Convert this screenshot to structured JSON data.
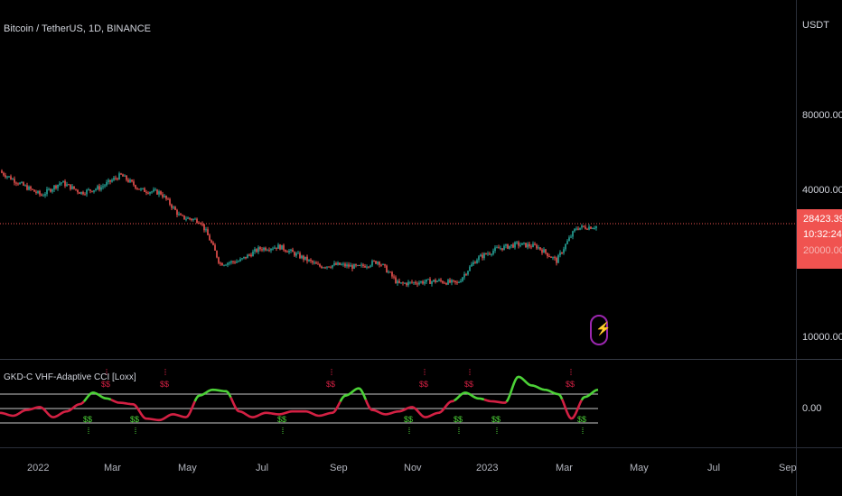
{
  "header": {
    "symbol": "Bitcoin / TetherUS, 1D, BINANCE",
    "currency": "USDT"
  },
  "price_axis": {
    "labels": [
      "80000.00",
      "40000.00",
      "10000.00"
    ]
  },
  "last_price": {
    "value": "28423.39",
    "countdown": "10:32:24",
    "hidden_label": "20000.00"
  },
  "indicator": {
    "title": "GKD-C VHF-Adaptive CCI [Loxx]",
    "axis_label": "0.00",
    "signal_label": "$$"
  },
  "time_axis": {
    "labels": [
      "2022",
      "Mar",
      "May",
      "Jul",
      "Sep",
      "Nov",
      "2023",
      "Mar",
      "May",
      "Jul",
      "Sep"
    ]
  },
  "colors": {
    "up_candle": "#26a69a",
    "down_candle": "#ef5350",
    "price_line": "#f05350",
    "osc_bull": "#4cd137",
    "osc_bear": "#d32043",
    "level_lines": "#a0a0a0",
    "background": "#000000"
  },
  "chart_data": [
    {
      "type": "candlestick",
      "title": "Bitcoin / TetherUS, 1D, BINANCE",
      "scale": "log",
      "y_ticks": [
        80000,
        40000,
        10000
      ],
      "last_price": 28423.39,
      "x": [
        "2022-01",
        "2022-01",
        "2022-02",
        "2022-02",
        "2022-03",
        "2022-03",
        "2022-04",
        "2022-04",
        "2022-05",
        "2022-05",
        "2022-06",
        "2022-06",
        "2022-07",
        "2022-07",
        "2022-08",
        "2022-08",
        "2022-09",
        "2022-09",
        "2022-10",
        "2022-10",
        "2022-11",
        "2022-11",
        "2022-12",
        "2022-12",
        "2023-01",
        "2023-01",
        "2023-02",
        "2023-02",
        "2023-03",
        "2023-03",
        "2023-04"
      ],
      "close": [
        47000,
        42000,
        38000,
        43000,
        39000,
        41000,
        46000,
        40000,
        39000,
        31000,
        30000,
        20000,
        20500,
        23000,
        23500,
        21500,
        19500,
        19800,
        19300,
        20500,
        16500,
        16800,
        17000,
        16600,
        21000,
        23000,
        24000,
        23500,
        20500,
        28000,
        28423.39
      ]
    },
    {
      "type": "line",
      "title": "GKD-C VHF-Adaptive CCI [Loxx]",
      "levels": [
        1,
        0,
        -1
      ],
      "x_ticks": [
        "2022",
        "Mar",
        "May",
        "Jul",
        "Sep",
        "Nov",
        "2023",
        "Mar",
        "May",
        "Jul",
        "Sep"
      ],
      "series": [
        {
          "values": [
            -0.3,
            -0.5,
            -0.1,
            0.1,
            -0.6,
            -0.2,
            0.3,
            1.1,
            0.7,
            0.4,
            0.3,
            -0.7,
            -0.8,
            -0.4,
            -0.6,
            0.9,
            1.3,
            1.2,
            -0.2,
            -0.6,
            -0.3,
            -0.4,
            -0.2,
            -0.2,
            -0.5,
            -0.3,
            0.9,
            1.4,
            -0.1,
            -0.4,
            -0.2,
            0.1,
            -0.6,
            -0.3,
            0.5,
            1.1,
            0.7,
            0.5,
            0.4,
            2.2,
            1.6,
            1.3,
            1.0,
            -0.7,
            0.8,
            1.3
          ]
        }
      ]
    }
  ]
}
